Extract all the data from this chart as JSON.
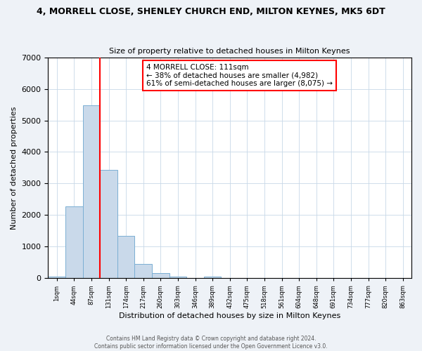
{
  "title": "4, MORRELL CLOSE, SHENLEY CHURCH END, MILTON KEYNES, MK5 6DT",
  "subtitle": "Size of property relative to detached houses in Milton Keynes",
  "xlabel": "Distribution of detached houses by size in Milton Keynes",
  "ylabel": "Number of detached properties",
  "bar_values": [
    60,
    2270,
    5480,
    3430,
    1340,
    450,
    170,
    60,
    0,
    60,
    0,
    0,
    0,
    0,
    0,
    0,
    0,
    0,
    0,
    0
  ],
  "bar_labels": [
    "1sqm",
    "44sqm",
    "87sqm",
    "131sqm",
    "174sqm",
    "217sqm",
    "260sqm",
    "303sqm",
    "346sqm",
    "389sqm",
    "432sqm",
    "475sqm",
    "518sqm",
    "561sqm",
    "604sqm",
    "648sqm",
    "691sqm",
    "734sqm",
    "777sqm",
    "820sqm",
    "863sqm"
  ],
  "ylim": [
    0,
    7000
  ],
  "yticks": [
    0,
    1000,
    2000,
    3000,
    4000,
    5000,
    6000,
    7000
  ],
  "bar_color": "#c9d9ea",
  "bar_edge_color": "#7bafd4",
  "vline_color": "red",
  "vline_x": 2.5,
  "annotation_text": "4 MORRELL CLOSE: 111sqm\n← 38% of detached houses are smaller (4,982)\n61% of semi-detached houses are larger (8,075) →",
  "annotation_box_color": "white",
  "annotation_box_edge_color": "red",
  "footer_line1": "Contains HM Land Registry data © Crown copyright and database right 2024.",
  "footer_line2": "Contains public sector information licensed under the Open Government Licence v3.0.",
  "background_color": "#eef2f7",
  "plot_background_color": "white",
  "grid_color": "#c8d8e8",
  "title_fontsize": 9,
  "subtitle_fontsize": 8
}
